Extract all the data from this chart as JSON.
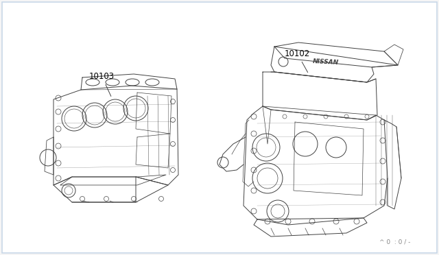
{
  "bg_color": "#f5f5f5",
  "white": "#ffffff",
  "border_color": "#c8d8e8",
  "lc": "#404040",
  "lc2": "#606060",
  "label_10103": "10103",
  "label_10102": "10102",
  "footnote": "^ 0  : 0 / -",
  "fig_width": 6.4,
  "fig_height": 3.72,
  "dpi": 100
}
